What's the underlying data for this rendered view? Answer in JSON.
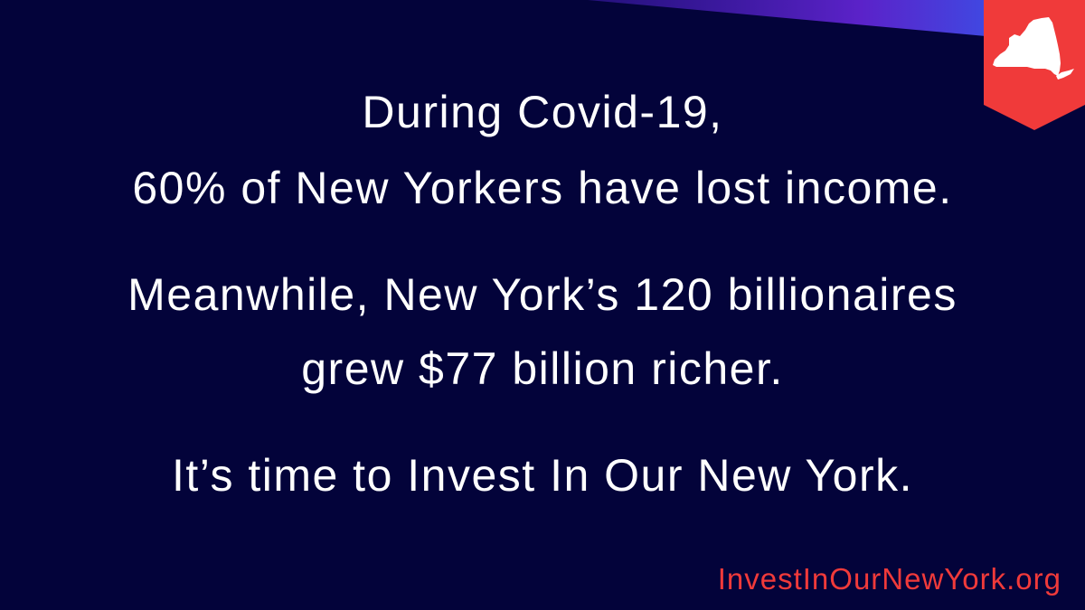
{
  "message": {
    "line1": "During Covid-19,",
    "line2": "60% of New Yorkers have lost income.",
    "line3": "Meanwhile, New York’s 120 billionaires",
    "line4": "grew $77 billion richer.",
    "line5": "It’s time to Invest In Our New York."
  },
  "footer": {
    "url": "InvestInOurNewYork.org"
  },
  "badge": {
    "icon": "new-york-state-icon"
  },
  "colors": {
    "background": "#03033a",
    "text": "#ffffff",
    "accent_red": "#f03a3a",
    "stripe_blue": "#2a6bf2",
    "stripe_purple": "#5b22c9"
  }
}
